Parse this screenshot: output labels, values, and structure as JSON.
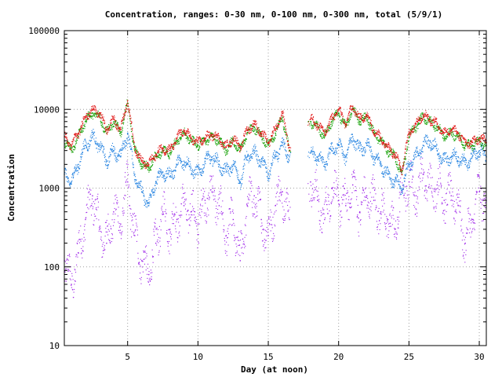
{
  "chart_data": {
    "type": "scatter",
    "title": "Concentration, ranges: 0-30 nm, 0-100 nm, 0-300 nm, total (5/9/1)",
    "xlabel": "Day (at noon)",
    "ylabel": "Concentration",
    "xlim": [
      0.5,
      30.5
    ],
    "ylim": [
      10,
      100000
    ],
    "yscale": "log",
    "grid": true,
    "legend": "none",
    "x_ticks": [
      5,
      10,
      15,
      20,
      25,
      30
    ],
    "x_tick_labels": [
      "5",
      "10",
      "15",
      "20",
      "25",
      "30"
    ],
    "y_ticks": [
      10,
      100,
      1000,
      10000,
      100000
    ],
    "y_tick_labels": [
      "10",
      "100",
      "1000",
      "10000",
      "100000"
    ],
    "gaps": [
      [
        16.6,
        17.8
      ]
    ],
    "series_order_note": "",
    "series": [
      {
        "color": "#9b1fe8",
        "x": [
          0.5,
          1,
          1.5,
          2,
          2.5,
          3,
          3.5,
          4,
          4.5,
          5,
          5.5,
          6,
          6.5,
          7,
          7.5,
          8,
          8.5,
          9,
          9.5,
          10,
          10.5,
          11,
          11.5,
          12,
          12.5,
          13,
          13.5,
          14,
          14.5,
          15,
          15.5,
          16,
          16.5,
          18,
          18.5,
          19,
          19.5,
          20,
          20.5,
          21,
          21.5,
          22,
          22.5,
          23,
          23.5,
          24,
          24.5,
          25,
          25.5,
          26,
          26.5,
          27,
          27.5,
          28,
          28.5,
          29,
          29.5,
          30,
          30.5
        ],
        "y": [
          120,
          60,
          150,
          400,
          800,
          300,
          200,
          500,
          350,
          1200,
          250,
          120,
          80,
          200,
          500,
          300,
          400,
          600,
          500,
          350,
          700,
          900,
          600,
          250,
          400,
          120,
          600,
          800,
          400,
          250,
          600,
          900,
          400,
          1200,
          700,
          400,
          1000,
          700,
          600,
          1100,
          500,
          800,
          700,
          500,
          400,
          300,
          900,
          1200,
          800,
          1500,
          1000,
          1100,
          700,
          800,
          600,
          200,
          400,
          900,
          700
        ]
      },
      {
        "color": "#2080e0",
        "x": [
          0.5,
          1,
          1.5,
          2,
          2.5,
          3,
          3.5,
          4,
          4.5,
          5,
          5.5,
          6,
          6.5,
          7,
          7.5,
          8,
          8.5,
          9,
          9.5,
          10,
          10.5,
          11,
          11.5,
          12,
          12.5,
          13,
          13.5,
          14,
          14.5,
          15,
          15.5,
          16,
          16.5,
          18,
          18.5,
          19,
          19.5,
          20,
          20.5,
          21,
          21.5,
          22,
          22.5,
          23,
          23.5,
          24,
          24.5,
          25,
          25.5,
          26,
          26.5,
          27,
          27.5,
          28,
          28.5,
          29,
          29.5,
          30,
          30.5
        ],
        "y": [
          1500,
          1200,
          2000,
          3500,
          4500,
          3500,
          2200,
          3000,
          2500,
          5000,
          1500,
          900,
          600,
          1200,
          1600,
          1400,
          2000,
          2200,
          1800,
          1500,
          2200,
          2500,
          2000,
          1600,
          2000,
          1200,
          2500,
          2800,
          2200,
          1500,
          2500,
          3500,
          2500,
          2800,
          2500,
          2000,
          3000,
          3500,
          2500,
          4500,
          3000,
          3500,
          2500,
          2000,
          1500,
          1200,
          1000,
          2000,
          2500,
          3500,
          4000,
          3000,
          2200,
          2500,
          2500,
          2000,
          2500,
          3000,
          2500
        ]
      },
      {
        "color": "#10a000",
        "x": [
          0.5,
          1,
          1.5,
          2,
          2.5,
          3,
          3.5,
          4,
          4.5,
          5,
          5.5,
          6,
          6.5,
          7,
          7.5,
          8,
          8.5,
          9,
          9.5,
          10,
          10.5,
          11,
          11.5,
          12,
          12.5,
          13,
          13.5,
          14,
          14.5,
          15,
          15.5,
          16,
          16.5,
          18,
          18.5,
          19,
          19.5,
          20,
          20.5,
          21,
          21.5,
          22,
          22.5,
          23,
          23.5,
          24,
          24.5,
          25,
          25.5,
          26,
          26.5,
          27,
          27.5,
          28,
          28.5,
          29,
          29.5,
          30,
          30.5
        ],
        "y": [
          4000,
          3000,
          4500,
          7000,
          9000,
          8000,
          5000,
          7000,
          5000,
          12000,
          3000,
          2000,
          1800,
          2500,
          3000,
          2800,
          4000,
          5000,
          4000,
          3500,
          4000,
          4500,
          4000,
          3000,
          4000,
          3000,
          5000,
          6000,
          4500,
          3500,
          5000,
          8000,
          3000,
          7000,
          6000,
          4500,
          7000,
          9000,
          6000,
          10000,
          7000,
          8000,
          5000,
          4000,
          3000,
          2500,
          1500,
          4500,
          6000,
          8000,
          7000,
          6000,
          4500,
          5000,
          4500,
          3500,
          3500,
          4000,
          3500
        ]
      },
      {
        "color": "#e01010",
        "x": [
          0.5,
          1,
          1.5,
          2,
          2.5,
          3,
          3.5,
          4,
          4.5,
          5,
          5.5,
          6,
          6.5,
          7,
          7.5,
          8,
          8.5,
          9,
          9.5,
          10,
          10.5,
          11,
          11.5,
          12,
          12.5,
          13,
          13.5,
          14,
          14.5,
          15,
          15.5,
          16,
          16.5,
          18,
          18.5,
          19,
          19.5,
          20,
          20.5,
          21,
          21.5,
          22,
          22.5,
          23,
          23.5,
          24,
          24.5,
          25,
          25.5,
          26,
          26.5,
          27,
          27.5,
          28,
          28.5,
          29,
          29.5,
          30,
          30.5
        ],
        "y": [
          4500,
          3500,
          5000,
          8000,
          10000,
          9000,
          5500,
          7500,
          5500,
          13000,
          3300,
          2200,
          2000,
          2700,
          3200,
          3000,
          4300,
          5500,
          4300,
          3800,
          4300,
          4800,
          4300,
          3300,
          4300,
          3300,
          5500,
          6500,
          5000,
          3800,
          5500,
          9000,
          3300,
          7500,
          6500,
          5000,
          7500,
          10000,
          6500,
          11000,
          7500,
          8500,
          5500,
          4300,
          3300,
          2700,
          1700,
          5000,
          6500,
          8500,
          7500,
          6500,
          5000,
          5500,
          5000,
          3800,
          3800,
          4300,
          3800
        ]
      }
    ]
  }
}
